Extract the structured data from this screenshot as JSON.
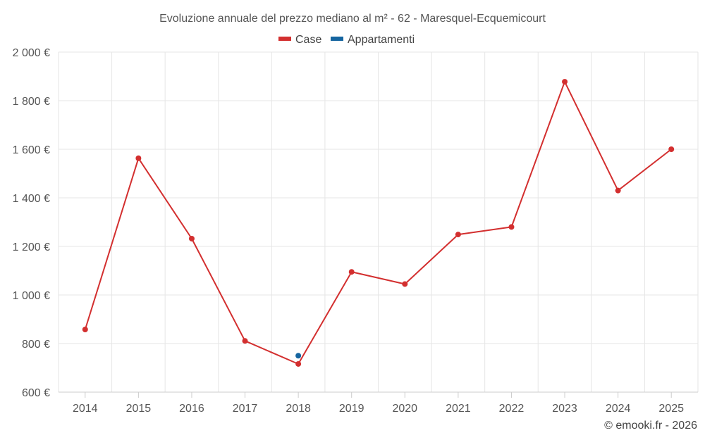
{
  "chart_data": {
    "type": "line",
    "title": "Evoluzione annuale del prezzo mediano al m² - 62 - Maresquel-Ecquemicourt",
    "categories": [
      "2014",
      "2015",
      "2016",
      "2017",
      "2018",
      "2019",
      "2020",
      "2021",
      "2022",
      "2023",
      "2024",
      "2025"
    ],
    "series": [
      {
        "name": "Case",
        "color": "#d32f2f",
        "values": [
          858,
          1563,
          1232,
          811,
          716,
          1095,
          1045,
          1249,
          1280,
          1878,
          1430,
          1600
        ]
      },
      {
        "name": "Appartamenti",
        "color": "#1565a0",
        "values": [
          null,
          null,
          null,
          null,
          750,
          null,
          null,
          null,
          null,
          null,
          null,
          null
        ]
      }
    ],
    "yticks": [
      "600 €",
      "800 €",
      "1 000 €",
      "1 200 €",
      "1 400 €",
      "1 600 €",
      "1 800 €",
      "2 000 €"
    ],
    "ytick_values": [
      600,
      800,
      1000,
      1200,
      1400,
      1600,
      1800,
      2000
    ],
    "ylim": [
      600,
      2000
    ],
    "xlabel": "",
    "ylabel": "",
    "legend_position": "top-center",
    "grid": true
  },
  "credit": "© emooki.fr - 2026"
}
